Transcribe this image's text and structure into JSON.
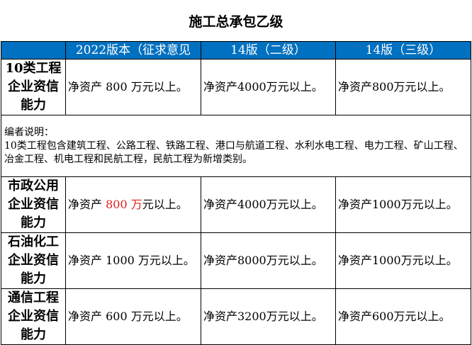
{
  "title": "施工总承包乙级",
  "header": {
    "col0": "",
    "col1": "2022版本（征求意见",
    "col2": "14版（二级）",
    "col3": "14版（三级）"
  },
  "colors": {
    "header_bg": "#0070C0",
    "highlight": "#e02020"
  },
  "rows": [
    {
      "label": "10类工程企业资信能力",
      "v2022": "净资产 800 万元以上。",
      "v14_2": "净资产4000万元以上。",
      "v14_3": "净资产800万元以上。"
    },
    {
      "label": "市政公用企业资信能力",
      "v2022_pre": "净资产 ",
      "v2022_red": "800 万",
      "v2022_post": "元以上。",
      "v14_2": "净资产4000万元以上。",
      "v14_3": "净资产1000万元以上。"
    },
    {
      "label": "石油化工企业资信能力",
      "v2022": "净资产 1000 万元以上。",
      "v14_2": "净资产8000万元以上。",
      "v14_3": "净资产1000万元以上。"
    },
    {
      "label": "通信工程企业资信能力",
      "v2022": "净资产 600 万元以上。",
      "v14_2": "净资产3200万元以上。",
      "v14_3": "净资产600万元以上。"
    }
  ],
  "note": {
    "heading": "编者说明：",
    "text": "10类工程包含建筑工程、公路工程、铁路工程、港口与航道工程、水利水电工程、电力工程、矿山工程、冶金工程、机电工程和民航工程，民航工程为新增类别。"
  }
}
